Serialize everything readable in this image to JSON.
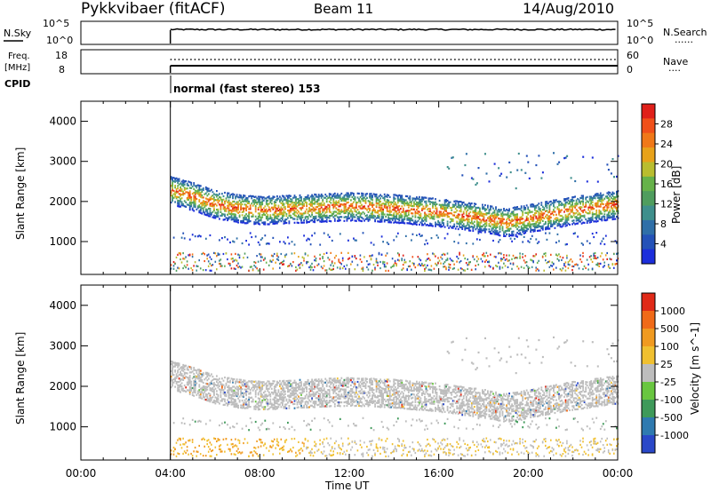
{
  "header": {
    "site": "Pykkvibaer (fitACF)",
    "beam": "Beam 11",
    "date": "14/Aug/2010"
  },
  "status_panels": {
    "nsky": {
      "label": "N.Sky",
      "ticks": [
        "10^5",
        "10^0"
      ],
      "right_ticks": [
        "10^5",
        "10^0"
      ],
      "right_label": "N.Search",
      "right_dots": "......"
    },
    "freq": {
      "label_line1": "Freq.",
      "label_line2": "[MHz]",
      "ticks": [
        "18",
        "8"
      ],
      "right_ticks": [
        "60",
        "0"
      ],
      "right_label": "Nave",
      "right_dots": "...."
    },
    "cpid": {
      "label": "CPID",
      "mode_text": "normal (fast stereo) 153"
    }
  },
  "chart_data": [
    {
      "type": "heatmap",
      "quantity": "Power",
      "ylabel": "Slant Range [km]",
      "ylim": [
        180,
        4500
      ],
      "yticks": [
        1000,
        2000,
        3000,
        4000
      ],
      "xlim_hours": [
        0,
        24
      ],
      "data_start_hour": 4,
      "colorbar": {
        "label": "Power [dB]",
        "range": [
          0,
          30
        ],
        "ticks": [
          "4",
          "8",
          "12",
          "16",
          "20",
          "24",
          "28"
        ],
        "colors": [
          "#1c2edb",
          "#2452b8",
          "#2f6fa8",
          "#3f8f8c",
          "#4f9d5e",
          "#66b24a",
          "#b9bd2f",
          "#e8a21a",
          "#f07818",
          "#f0501a",
          "#e0201a"
        ]
      },
      "echo_band": {
        "description": "main scatter band",
        "center_km": [
          [
            4,
            2250
          ],
          [
            5,
            2100
          ],
          [
            6,
            1900
          ],
          [
            7,
            1800
          ],
          [
            8,
            1750
          ],
          [
            10,
            1800
          ],
          [
            12,
            1850
          ],
          [
            14,
            1800
          ],
          [
            16,
            1700
          ],
          [
            18,
            1550
          ],
          [
            19,
            1450
          ],
          [
            20,
            1550
          ],
          [
            22,
            1750
          ],
          [
            24,
            1900
          ]
        ]
      }
    },
    {
      "type": "heatmap",
      "quantity": "Velocity",
      "ylabel": "Slant Range [km]",
      "ylim": [
        180,
        4500
      ],
      "yticks": [
        1000,
        2000,
        3000,
        4000
      ],
      "xlim_hours": [
        0,
        24
      ],
      "data_start_hour": 4,
      "colorbar": {
        "label": "Velocity [m s^-1]",
        "ticks": [
          "1000",
          "500",
          "100",
          "25",
          "-25",
          "-100",
          "-500",
          "-1000"
        ],
        "colors": [
          "#2a48c8",
          "#2f7ab0",
          "#3f9a5a",
          "#69c640",
          "#bdbdbd",
          "#f0c030",
          "#f09a20",
          "#f06a18",
          "#e02a18"
        ]
      },
      "x_axis": {
        "label": "Time UT",
        "ticks": [
          "00:00",
          "04:00",
          "08:00",
          "12:00",
          "16:00",
          "20:00",
          "00:00"
        ]
      }
    }
  ]
}
